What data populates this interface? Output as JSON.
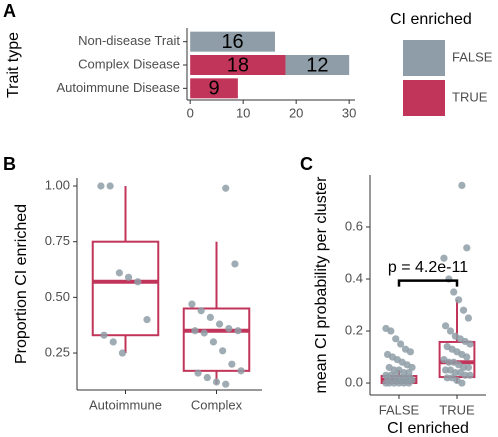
{
  "chart_data": [
    {
      "type": "bar",
      "panel": "A",
      "horizontal": true,
      "stacked": true,
      "ylabel": "Trait type",
      "legend_title": "CI enriched",
      "categories": [
        "Non-disease Trait",
        "Complex Disease",
        "Autoimmune Disease"
      ],
      "series": [
        {
          "name": "FALSE",
          "color": "#8e9da7",
          "values": [
            16,
            12,
            null
          ]
        },
        {
          "name": "TRUE",
          "color": "#c2355a",
          "values": [
            null,
            18,
            9
          ]
        }
      ],
      "xlim": [
        -0.6,
        31.1
      ],
      "xticks": [
        0,
        10,
        20,
        30
      ]
    },
    {
      "type": "box",
      "panel": "B",
      "ylabel": "Proportion CI enriched",
      "color": "#c2355a",
      "point_color": "#8e9da7",
      "categories": [
        "Autoimmune",
        "Complex"
      ],
      "boxes": [
        {
          "whisker_low": 0.25,
          "q1": 0.33,
          "median": 0.57,
          "q3": 0.75,
          "whisker_high": 1.0,
          "points": [
            1.0,
            1.0,
            0.61,
            0.59,
            0.57,
            0.4,
            0.33,
            0.3,
            0.25
          ]
        },
        {
          "whisker_low": 0.11,
          "q1": 0.17,
          "median": 0.35,
          "q3": 0.45,
          "whisker_high": 0.75,
          "points": [
            0.99,
            0.65,
            0.47,
            0.44,
            0.41,
            0.38,
            0.36,
            0.35,
            0.35,
            0.34,
            0.3,
            0.26,
            0.2,
            0.17,
            0.16,
            0.14,
            0.12,
            0.11
          ]
        }
      ],
      "ylim": [
        0.084,
        1.036
      ],
      "yticks": [
        0.25,
        {
          "value": 0.5,
          "label": "0.50"
        },
        0.75,
        {
          "value": 1,
          "label": "1.00"
        }
      ]
    },
    {
      "type": "box",
      "panel": "C",
      "ylabel": "mean CI probability per cluster",
      "xlabel": "CI enriched",
      "annotation": "p = 4.2e-11",
      "color": "#c2355a",
      "point_color": "#8e9da7",
      "categories": [
        "FALSE",
        "TRUE"
      ],
      "boxes": [
        {
          "whisker_low": 0.0,
          "q1": 0.0,
          "median": 0.012,
          "q3": 0.027,
          "whisker_high": 0.05,
          "points": [
            0.21,
            0.2,
            0.17,
            0.15,
            0.13,
            0.12,
            0.11,
            0.1,
            0.09,
            0.08,
            0.07,
            0.06,
            0.06,
            0.05,
            0.05,
            0.04,
            0.04,
            0.03,
            0.03,
            0.03,
            0.02,
            0.02,
            0.02,
            0.02,
            0.01,
            0.01,
            0.01,
            0.01,
            0.01,
            0.0,
            0.0,
            0.0,
            0.0,
            0.0,
            0.0
          ]
        },
        {
          "whisker_low": 0.0,
          "q1": 0.023,
          "median": 0.08,
          "q3": 0.158,
          "whisker_high": 0.32,
          "points": [
            0.76,
            0.52,
            0.48,
            0.4,
            0.35,
            0.32,
            0.28,
            0.25,
            0.22,
            0.2,
            0.18,
            0.17,
            0.16,
            0.15,
            0.14,
            0.13,
            0.12,
            0.11,
            0.1,
            0.09,
            0.08,
            0.08,
            0.07,
            0.06,
            0.06,
            0.05,
            0.05,
            0.04,
            0.04,
            0.03,
            0.03,
            0.02,
            0.02,
            0.01,
            0.0
          ]
        }
      ],
      "ylim": [
        -0.046,
        0.8
      ],
      "yticks": [
        {
          "value": 0,
          "label": "0.0"
        },
        0.2,
        0.4,
        0.6
      ]
    }
  ]
}
